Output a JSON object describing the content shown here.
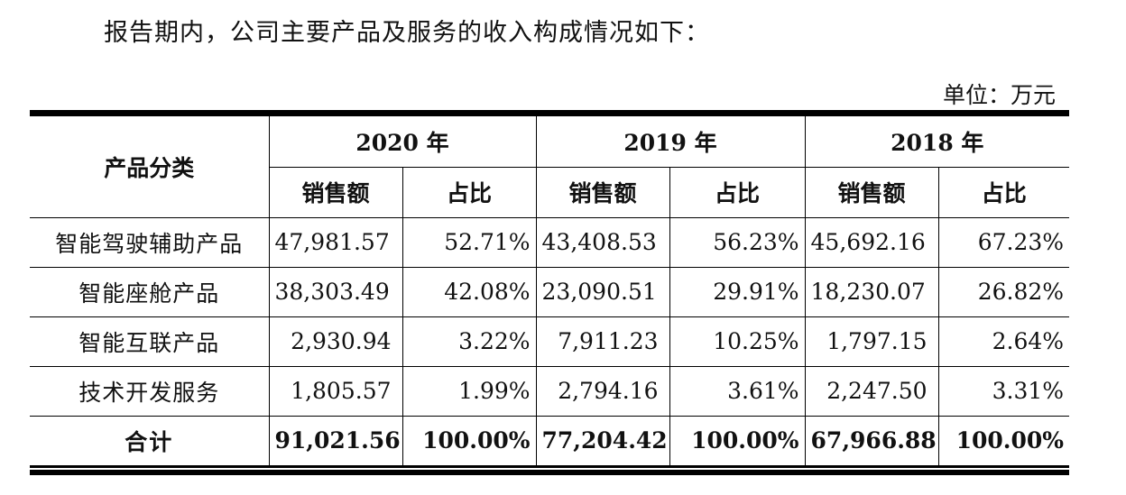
{
  "intro": "报告期内，公司主要产品及服务的收入构成情况如下：",
  "unit": "单位：万元",
  "table": {
    "category_header": "产品分类",
    "years": [
      "2020 年",
      "2019 年",
      "2018 年"
    ],
    "sales_label": "销售额",
    "share_label": "占比",
    "rows": [
      {
        "name": "智能驾驶辅助产品",
        "v": [
          "47,981.57",
          "52.71%",
          "43,408.53",
          "56.23%",
          "45,692.16",
          "67.23%"
        ]
      },
      {
        "name": "智能座舱产品",
        "v": [
          "38,303.49",
          "42.08%",
          "23,090.51",
          "29.91%",
          "18,230.07",
          "26.82%"
        ]
      },
      {
        "name": "智能互联产品",
        "v": [
          "2,930.94",
          "3.22%",
          "7,911.23",
          "10.25%",
          "1,797.15",
          "2.64%"
        ]
      },
      {
        "name": "技术开发服务",
        "v": [
          "1,805.57",
          "1.99%",
          "2,794.16",
          "3.61%",
          "2,247.50",
          "3.31%"
        ]
      }
    ],
    "total": {
      "name": "合计",
      "v": [
        "91,021.56",
        "100.00%",
        "77,204.42",
        "100.00%",
        "67,966.88",
        "100.00%"
      ]
    }
  }
}
